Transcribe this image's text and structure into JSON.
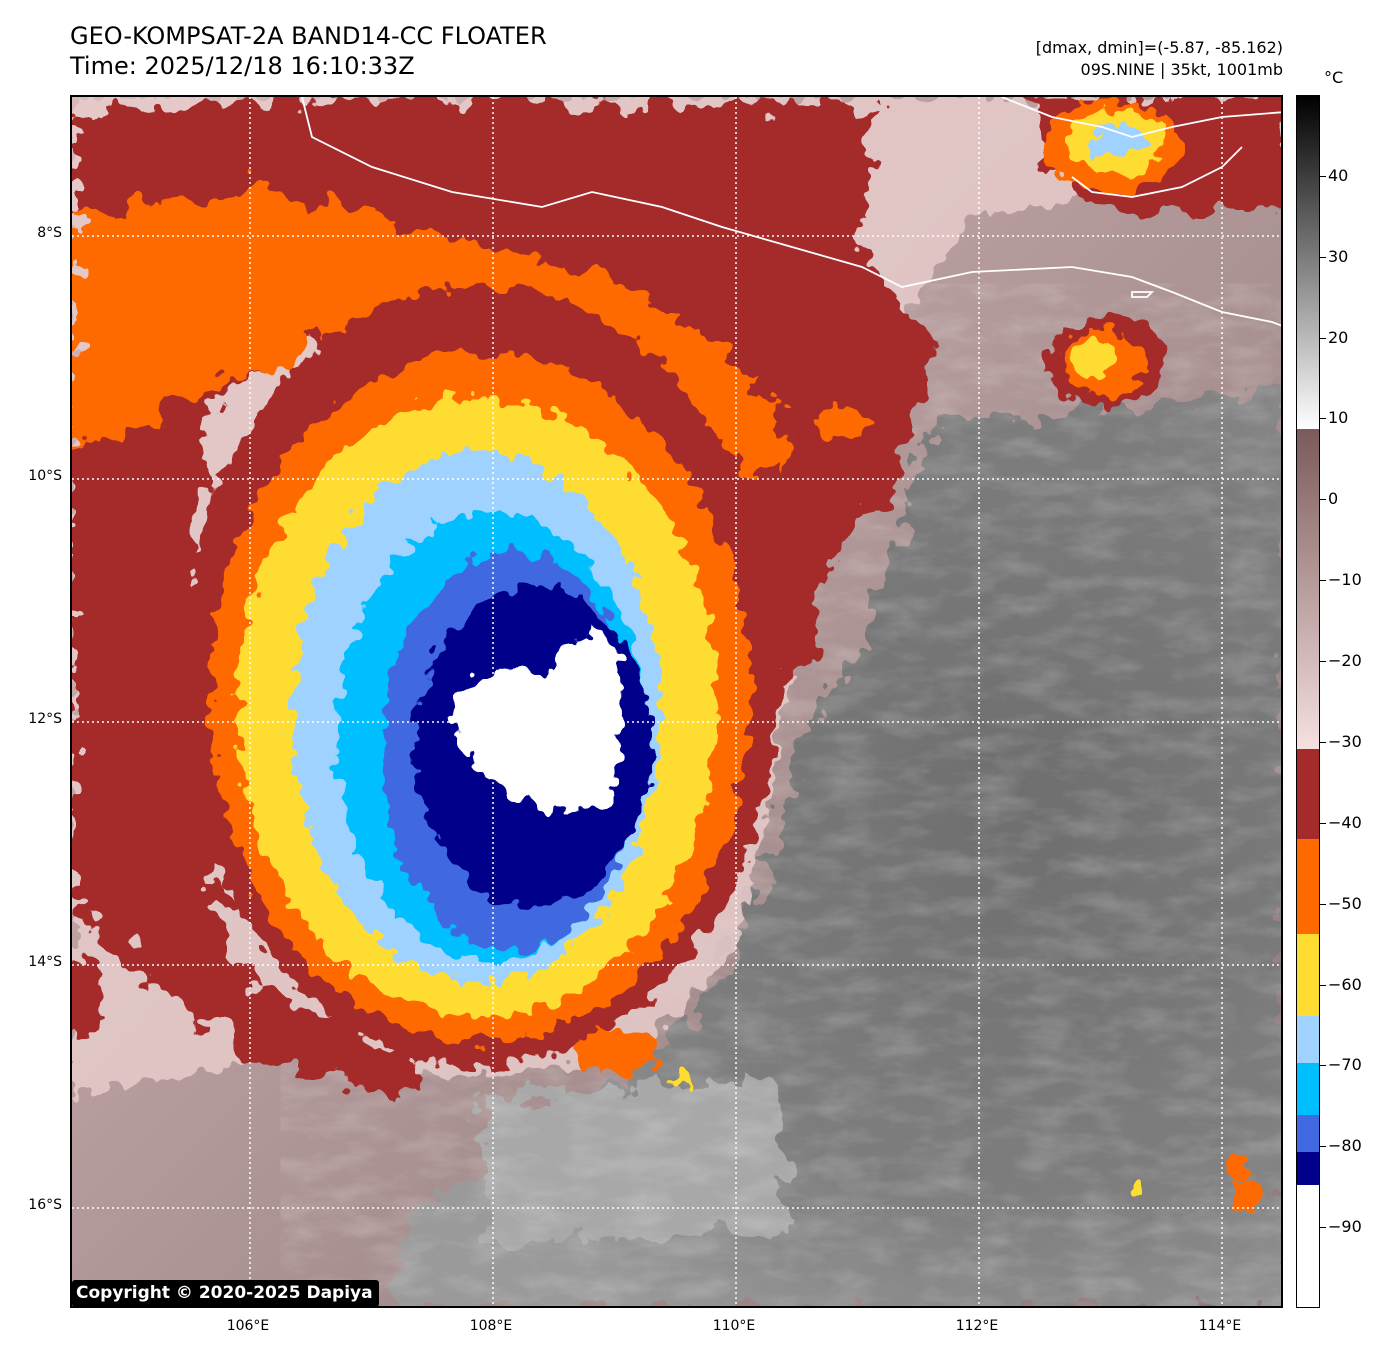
{
  "header": {
    "title_line1": "GEO-KOMPSAT-2A BAND14-CC FLOATER",
    "title_line2": "Time: 2025/12/18 16:10:33Z",
    "info_line1": "[dmax, dmin]=(-5.87, -85.162)",
    "info_line2": "09S.NINE | 35kt, 1001mb"
  },
  "map": {
    "lat_labels": [
      "8°S",
      "10°S",
      "12°S",
      "14°S",
      "16°S"
    ],
    "lon_labels": [
      "106°E",
      "108°E",
      "110°E",
      "112°E",
      "114°E"
    ],
    "grid_lat_values": [
      -8,
      -10,
      -12,
      -14,
      -16
    ],
    "grid_lon_values": [
      106,
      108,
      110,
      112,
      114
    ],
    "copyright": "Copyright © 2020-2025 Dapiya"
  },
  "colorbar": {
    "unit": "°C",
    "tick_labels": [
      "40",
      "30",
      "20",
      "10",
      "0",
      "−10",
      "−20",
      "−30",
      "−40",
      "−50",
      "−60",
      "−70",
      "−80",
      "−90"
    ],
    "tick_values": [
      40,
      30,
      20,
      10,
      0,
      -10,
      -20,
      -30,
      -40,
      -50,
      -60,
      -70,
      -80,
      -90
    ],
    "range": [
      -100,
      50
    ],
    "colors": {
      "navy": "#00008b",
      "royal_blue": "#4169e1",
      "deep_sky_blue": "#00bfff",
      "light_blue": "#a0d2ff",
      "yellow": "#ffdc32",
      "orange": "#ff6a00",
      "dark_red": "#a52a2a",
      "pink": "#f5d5d5"
    }
  }
}
